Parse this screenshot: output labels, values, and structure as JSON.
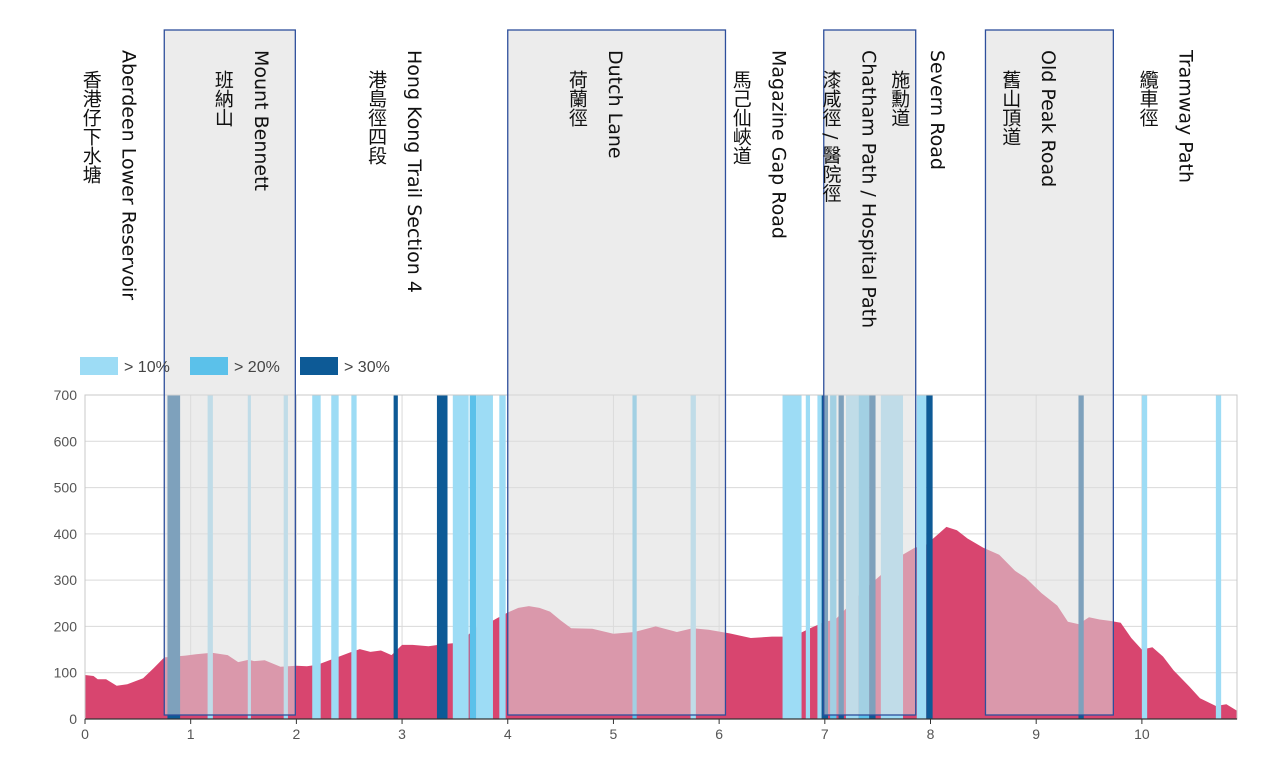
{
  "chart_data": {
    "type": "area",
    "xlabel": "",
    "ylabel": "",
    "xlim": [
      0,
      10.9
    ],
    "ylim": [
      0,
      700
    ],
    "x_ticks": [
      0,
      1,
      2,
      3,
      4,
      5,
      6,
      7,
      8,
      9,
      10
    ],
    "y_ticks": [
      0,
      100,
      200,
      300,
      400,
      500,
      600,
      700
    ],
    "grid": true,
    "legend_position": "top-left",
    "legend": [
      {
        "label": "> 10%",
        "color": "#9ddcf5"
      },
      {
        "label": "> 20%",
        "color": "#5bc1ea"
      },
      {
        "label": "> 30%",
        "color": "#0d5a96"
      }
    ],
    "colors": {
      "area": "#d8456f",
      "band_fill": "#dcdcdc",
      "band_border": "#2e4f9c",
      "grid": "#d9d9d9"
    },
    "elevation": {
      "x": [
        0,
        0.08,
        0.12,
        0.2,
        0.3,
        0.4,
        0.55,
        0.65,
        0.75,
        0.85,
        0.95,
        1.05,
        1.2,
        1.35,
        1.45,
        1.55,
        1.6,
        1.7,
        1.85,
        2.0,
        2.1,
        2.2,
        2.35,
        2.5,
        2.6,
        2.7,
        2.8,
        2.9,
        3.0,
        3.1,
        3.25,
        3.4,
        3.55,
        3.7,
        3.8,
        3.9,
        4.0,
        4.1,
        4.2,
        4.3,
        4.4,
        4.5,
        4.6,
        4.8,
        5.0,
        5.2,
        5.4,
        5.6,
        5.75,
        5.9,
        6.1,
        6.3,
        6.5,
        6.7,
        6.85,
        7.0,
        7.1,
        7.25,
        7.4,
        7.55,
        7.7,
        7.85,
        7.95,
        8.05,
        8.15,
        8.25,
        8.35,
        8.5,
        8.65,
        8.8,
        8.9,
        9.05,
        9.2,
        9.3,
        9.4,
        9.5,
        9.6,
        9.7,
        9.8,
        9.9,
        10.0,
        10.1,
        10.2,
        10.3,
        10.45,
        10.55,
        10.7,
        10.8,
        10.9
      ],
      "y": [
        95,
        93,
        86,
        86,
        72,
        75,
        88,
        110,
        133,
        135,
        137,
        140,
        143,
        138,
        123,
        128,
        125,
        127,
        113,
        115,
        114,
        117,
        130,
        143,
        151,
        145,
        148,
        138,
        160,
        160,
        157,
        162,
        165,
        198,
        205,
        218,
        230,
        240,
        244,
        240,
        232,
        213,
        196,
        195,
        184,
        188,
        200,
        188,
        196,
        193,
        185,
        175,
        178,
        178,
        195,
        210,
        215,
        250,
        285,
        315,
        350,
        370,
        375,
        395,
        415,
        408,
        390,
        370,
        355,
        320,
        305,
        272,
        245,
        210,
        205,
        220,
        215,
        212,
        208,
        175,
        150,
        155,
        135,
        105,
        70,
        45,
        28,
        32,
        18
      ]
    },
    "steep_segments": [
      {
        "from": 0.78,
        "to": 0.9,
        "grade": "> 30%"
      },
      {
        "from": 1.16,
        "to": 1.21,
        "grade": "> 10%"
      },
      {
        "from": 1.54,
        "to": 1.57,
        "grade": "> 10%"
      },
      {
        "from": 1.88,
        "to": 1.92,
        "grade": "> 10%"
      },
      {
        "from": 2.15,
        "to": 2.23,
        "grade": "> 10%"
      },
      {
        "from": 2.33,
        "to": 2.4,
        "grade": "> 10%"
      },
      {
        "from": 2.52,
        "to": 2.57,
        "grade": "> 10%"
      },
      {
        "from": 2.92,
        "to": 2.96,
        "grade": "> 30%"
      },
      {
        "from": 3.33,
        "to": 3.43,
        "grade": "> 30%"
      },
      {
        "from": 3.48,
        "to": 3.63,
        "grade": "> 10%"
      },
      {
        "from": 3.64,
        "to": 3.7,
        "grade": "> 20%"
      },
      {
        "from": 3.7,
        "to": 3.86,
        "grade": "> 10%"
      },
      {
        "from": 3.92,
        "to": 3.98,
        "grade": "> 10%"
      },
      {
        "from": 5.18,
        "to": 5.22,
        "grade": "> 20%"
      },
      {
        "from": 5.73,
        "to": 5.78,
        "grade": "> 10%"
      },
      {
        "from": 6.6,
        "to": 6.78,
        "grade": "> 10%"
      },
      {
        "from": 6.82,
        "to": 6.86,
        "grade": "> 10%"
      },
      {
        "from": 6.93,
        "to": 6.97,
        "grade": "> 10%"
      },
      {
        "from": 6.97,
        "to": 7.03,
        "grade": "> 30%"
      },
      {
        "from": 7.05,
        "to": 7.11,
        "grade": "> 20%"
      },
      {
        "from": 7.13,
        "to": 7.18,
        "grade": "> 30%"
      },
      {
        "from": 7.2,
        "to": 7.32,
        "grade": "> 10%"
      },
      {
        "from": 7.32,
        "to": 7.42,
        "grade": "> 20%"
      },
      {
        "from": 7.42,
        "to": 7.48,
        "grade": "> 30%"
      },
      {
        "from": 7.53,
        "to": 7.74,
        "grade": "> 10%"
      },
      {
        "from": 7.87,
        "to": 7.96,
        "grade": "> 10%"
      },
      {
        "from": 7.96,
        "to": 8.02,
        "grade": "> 30%"
      },
      {
        "from": 9.4,
        "to": 9.45,
        "grade": "> 30%"
      },
      {
        "from": 10.0,
        "to": 10.05,
        "grade": "> 10%"
      },
      {
        "from": 10.7,
        "to": 10.75,
        "grade": "> 10%"
      }
    ],
    "sections": [
      {
        "from": 0.75,
        "to": 1.99
      },
      {
        "from": 4.0,
        "to": 6.06
      },
      {
        "from": 6.99,
        "to": 7.86
      },
      {
        "from": 8.52,
        "to": 9.73
      }
    ],
    "annotations": [
      {
        "x": 0.3,
        "en": "Aberdeen Lower Reservoir",
        "zh": "香港仔下水塘"
      },
      {
        "x": 1.55,
        "en": "Mount Bennett",
        "zh": "班納山"
      },
      {
        "x": 3.0,
        "en": "Hong Kong Trail Section 4",
        "zh": "港島徑四段"
      },
      {
        "x": 4.9,
        "en": "Dutch Lane",
        "zh": "荷蘭徑"
      },
      {
        "x": 6.45,
        "en": "Magazine Gap Road",
        "zh": "馬己仙峽道"
      },
      {
        "x": 7.3,
        "en": "Chatham Path / Hospital Path",
        "zh": "漆咸徑 / 醫院徑"
      },
      {
        "x": 7.95,
        "en": "Severn Road",
        "zh": "施勳道"
      },
      {
        "x": 9.0,
        "en": "Old Peak Road",
        "zh": "舊山頂道"
      },
      {
        "x": 10.3,
        "en": "Tramway Path",
        "zh": "纜車徑"
      }
    ]
  }
}
